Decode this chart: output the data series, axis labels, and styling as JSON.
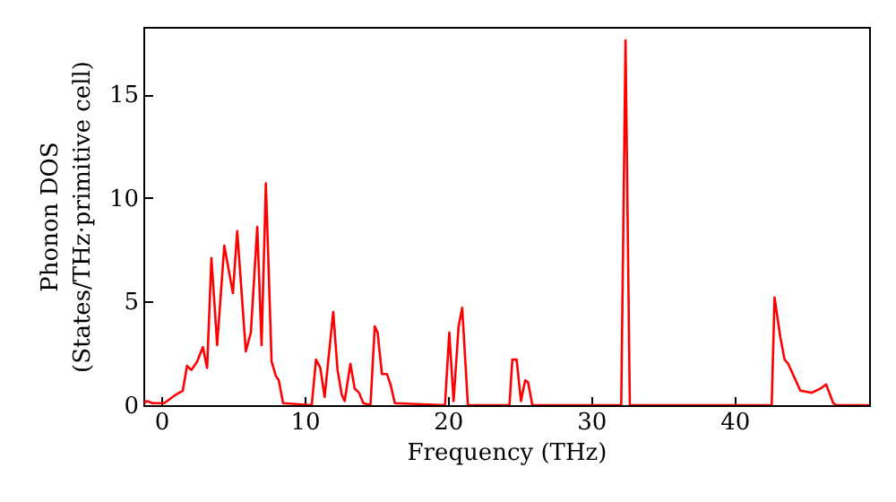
{
  "chart_data": {
    "type": "line",
    "xlabel": "Frequency (THz)",
    "ylabel": "Phonon DOS\n(States/THz·primitive cell)",
    "x": [
      -1.2,
      -1.0,
      -0.6,
      0.2,
      1.0,
      1.5,
      1.8,
      2.1,
      2.5,
      2.9,
      3.2,
      3.5,
      3.9,
      4.4,
      5.0,
      5.3,
      5.9,
      6.25,
      6.7,
      7.0,
      7.3,
      7.7,
      8.0,
      8.2,
      8.5,
      10.5,
      10.8,
      11.1,
      11.4,
      12.0,
      12.3,
      12.6,
      12.8,
      13.2,
      13.5,
      13.8,
      14.1,
      14.6,
      14.9,
      15.1,
      15.4,
      15.75,
      16.0,
      16.3,
      19.8,
      20.1,
      20.4,
      20.75,
      21.0,
      21.4,
      24.3,
      24.5,
      24.8,
      25.1,
      25.4,
      25.6,
      25.9,
      32.1,
      32.4,
      32.7,
      42.6,
      42.8,
      43.2,
      43.5,
      43.75,
      44.6,
      45.4,
      46.0,
      46.4,
      46.9,
      47.1,
      49.4
    ],
    "series": [
      {
        "color": "#ff0000",
        "values": [
          0.1,
          0.2,
          0.1,
          0.1,
          0.5,
          0.7,
          1.9,
          1.7,
          2.1,
          2.8,
          1.8,
          7.1,
          2.9,
          7.7,
          5.4,
          8.4,
          2.6,
          3.5,
          8.6,
          2.9,
          10.7,
          2.1,
          1.4,
          1.2,
          0.1,
          0,
          2.2,
          1.8,
          0.4,
          4.5,
          1.7,
          0.5,
          0.2,
          2.0,
          0.8,
          0.6,
          0.1,
          0,
          3.8,
          3.5,
          1.5,
          1.5,
          1.0,
          0.1,
          0,
          3.5,
          0.2,
          3.8,
          4.7,
          0,
          0,
          2.2,
          2.2,
          0.2,
          1.2,
          1.1,
          0,
          0,
          17.6,
          0,
          0,
          5.2,
          3.3,
          2.2,
          2.0,
          0.7,
          0.6,
          0.8,
          1.0,
          0.1,
          0,
          0
        ]
      }
    ],
    "xlim": [
      -1.25,
      49.4
    ],
    "xticks": [
      0,
      10,
      20,
      30,
      40
    ],
    "ylim": [
      0,
      18.25
    ],
    "yticks": [
      0,
      5,
      10,
      15
    ],
    "grid": false,
    "marker": "none",
    "line_style": "solid"
  }
}
